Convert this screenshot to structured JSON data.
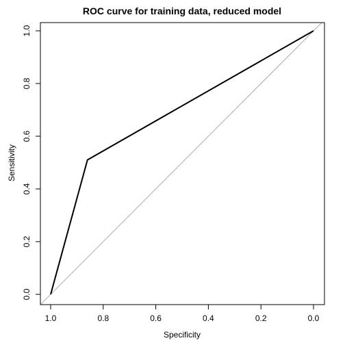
{
  "chart_data": {
    "type": "line",
    "title": "ROC curve for training data, reduced model",
    "xlabel": "Specificity",
    "ylabel": "Sensitivity",
    "xlim": [
      1.0,
      0.0
    ],
    "ylim": [
      0.0,
      1.0
    ],
    "x_reversed": true,
    "grid": false,
    "x_ticks": [
      1.0,
      0.8,
      0.6,
      0.4,
      0.2,
      0.0
    ],
    "x_tick_labels": [
      "1.0",
      "0.8",
      "0.6",
      "0.4",
      "0.2",
      "0.0"
    ],
    "y_ticks": [
      0.0,
      0.2,
      0.4,
      0.6,
      0.8,
      1.0
    ],
    "y_tick_labels": [
      "0.0",
      "0.2",
      "0.4",
      "0.6",
      "0.8",
      "1.0"
    ],
    "series": [
      {
        "x": [
          1.0,
          0.86,
          0.0
        ],
        "y": [
          0.0,
          0.51,
          1.0
        ],
        "color": "#000000"
      }
    ],
    "reference_line": {
      "from": [
        1.0,
        0.0
      ],
      "to": [
        0.0,
        1.0
      ],
      "color": "#aaaaaa"
    }
  }
}
